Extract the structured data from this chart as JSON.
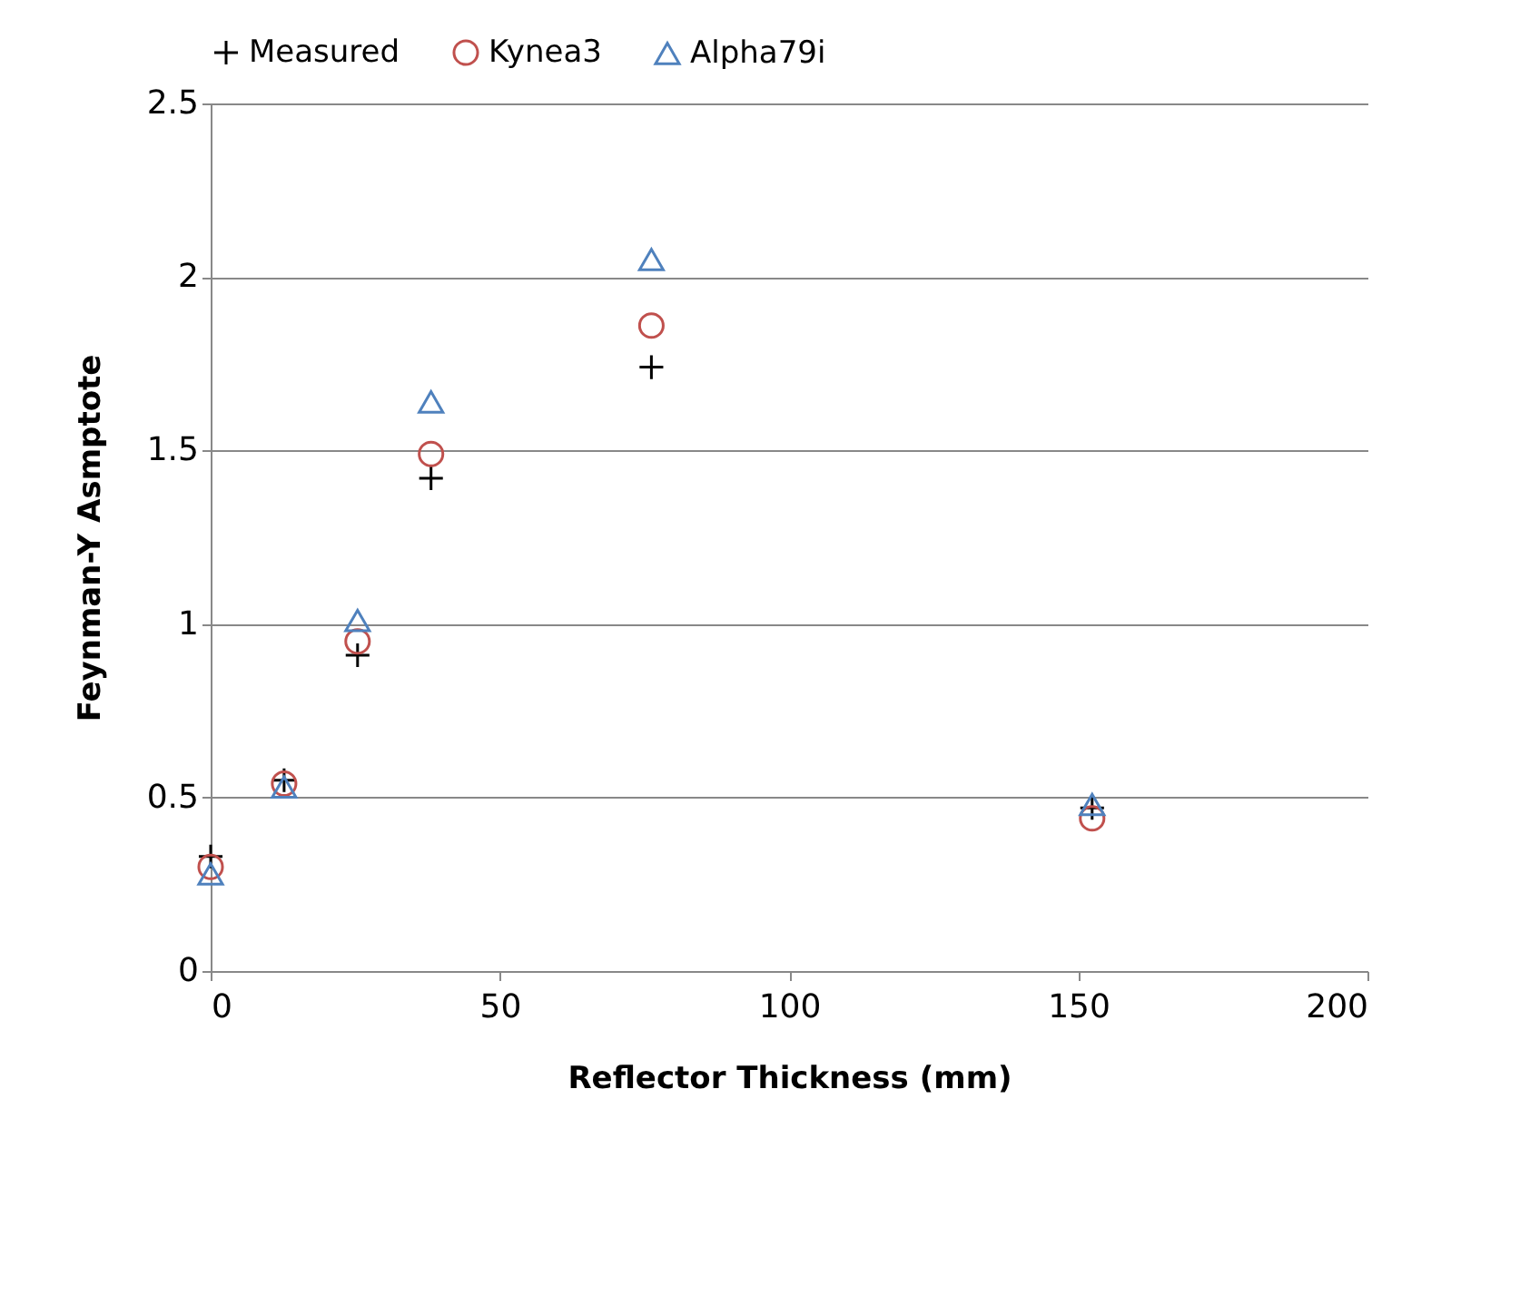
{
  "chart_data": {
    "type": "scatter",
    "xlabel": "Reflector Thickness (mm)",
    "ylabel": "Feynman-Y Asmptote",
    "x": [
      0,
      12.7,
      25.4,
      38.1,
      76.2,
      152.4
    ],
    "series": [
      {
        "name": "Measured",
        "color": "#000000",
        "marker": "cross",
        "values": [
          0.33,
          0.55,
          0.91,
          1.42,
          1.74,
          0.47
        ]
      },
      {
        "name": "Kynea3",
        "color": "#c0504d",
        "marker": "circle",
        "values": [
          0.3,
          0.54,
          0.95,
          1.49,
          1.86,
          0.44
        ]
      },
      {
        "name": "Alpha79i",
        "color": "#4f81bd",
        "marker": "triangle",
        "values": [
          0.28,
          0.53,
          1.01,
          1.64,
          2.05,
          0.48
        ]
      }
    ],
    "xlim": [
      0,
      200
    ],
    "xticks": [
      0,
      50,
      100,
      150,
      200
    ],
    "ylim": [
      0,
      2.5
    ],
    "yticks": [
      0,
      0.5,
      1,
      1.5,
      2,
      2.5
    ],
    "grid": "y",
    "legend": "top"
  }
}
